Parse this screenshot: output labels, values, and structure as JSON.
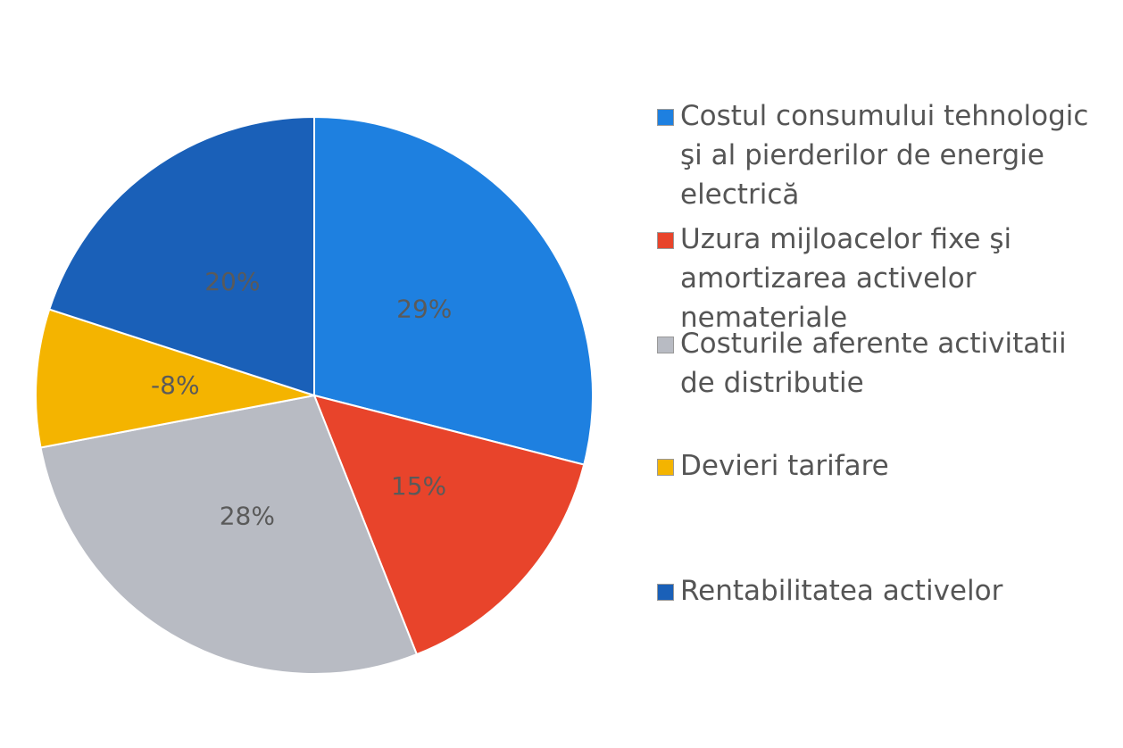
{
  "chart_data": {
    "type": "pie",
    "categories": [
      "Costul consumului tehnologic şi al pierderilor de energie electrică",
      "Uzura mijloacelor fixe şi amortizarea activelor nemateriale",
      "Costurile aferente activitatii de distributie",
      "Devieri tarifare",
      "Rentabilitatea activelor"
    ],
    "values": [
      29,
      15,
      28,
      -8,
      20
    ],
    "value_labels": [
      "29%",
      "15%",
      "28%",
      "-8%",
      "20%"
    ],
    "colors": [
      "#1e80e0",
      "#e8442b",
      "#b8bbc3",
      "#f4b400",
      "#1a60b8"
    ],
    "legend": "right"
  }
}
